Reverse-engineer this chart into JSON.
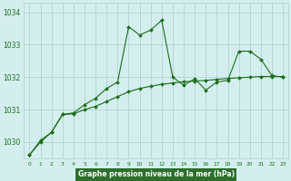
{
  "xlabel": "Graphe pression niveau de la mer (hPa)",
  "x": [
    0,
    1,
    2,
    3,
    4,
    5,
    6,
    7,
    8,
    9,
    10,
    11,
    12,
    13,
    14,
    15,
    16,
    17,
    18,
    19,
    20,
    21,
    22,
    23
  ],
  "series1": [
    1029.6,
    1030.0,
    1030.3,
    1030.85,
    1030.9,
    1031.15,
    1031.35,
    1031.65,
    1031.85,
    1033.55,
    1033.3,
    1033.45,
    1033.75,
    1032.0,
    1031.75,
    1031.95,
    1031.6,
    1031.85,
    1031.9,
    1032.8,
    1032.8,
    1032.55,
    1032.05,
    1032.0
  ],
  "series2": [
    1029.6,
    1030.05,
    1030.3,
    1030.85,
    1030.87,
    1031.0,
    1031.1,
    1031.25,
    1031.4,
    1031.55,
    1031.65,
    1031.72,
    1031.78,
    1031.82,
    1031.86,
    1031.88,
    1031.9,
    1031.93,
    1031.96,
    1031.98,
    1032.0,
    1032.02,
    1032.02,
    1032.02
  ],
  "ylim": [
    1029.5,
    1034.3
  ],
  "yticks": [
    1030,
    1031,
    1032,
    1033,
    1034
  ],
  "xticks": [
    0,
    1,
    2,
    3,
    4,
    5,
    6,
    7,
    8,
    9,
    10,
    11,
    12,
    13,
    14,
    15,
    16,
    17,
    18,
    19,
    20,
    21,
    22,
    23
  ],
  "line_color": "#1a6e1a",
  "bg_color": "#d4eeee",
  "grid_color": "#aacece",
  "label_bg": "#2d6e2d",
  "label_fg": "#ffffff",
  "fig_width": 3.2,
  "fig_height": 2.0,
  "dpi": 100
}
